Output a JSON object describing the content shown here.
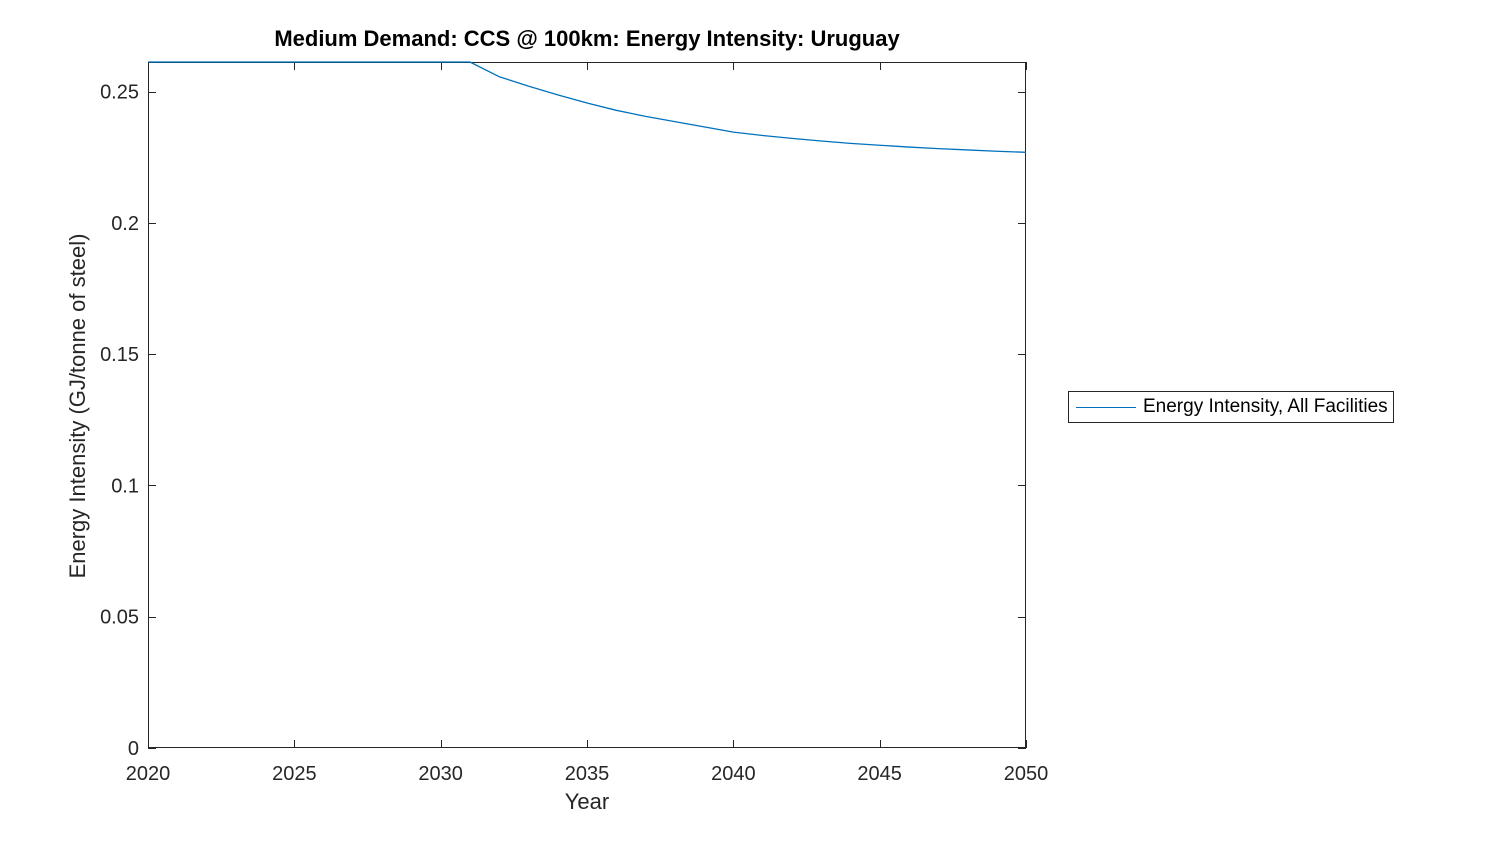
{
  "chart_data": {
    "type": "line",
    "title": "Medium Demand: CCS @ 100km: Energy Intensity: Uruguay",
    "xlabel": "Year",
    "ylabel": "Energy Intensity (GJ/tonne of steel)",
    "xlim": [
      2020,
      2050
    ],
    "ylim": [
      0,
      0.2613
    ],
    "xticks": [
      2020,
      2025,
      2030,
      2035,
      2040,
      2045,
      2050
    ],
    "xtick_labels": [
      "2020",
      "2025",
      "2030",
      "2035",
      "2040",
      "2045",
      "2050"
    ],
    "yticks": [
      0,
      0.05,
      0.1,
      0.15,
      0.2,
      0.25
    ],
    "ytick_labels": [
      "0",
      "0.05",
      "0.1",
      "0.15",
      "0.2",
      "0.25"
    ],
    "grid": false,
    "legend_position": "right-outside",
    "axis_color": "#262626",
    "background_color": "#ffffff",
    "series": [
      {
        "name": "Energy Intensity, All Facilities",
        "color": "#0072BD",
        "x": [
          2020,
          2021,
          2022,
          2023,
          2024,
          2025,
          2026,
          2027,
          2028,
          2029,
          2030,
          2031,
          2032,
          2033,
          2034,
          2035,
          2036,
          2037,
          2038,
          2039,
          2040,
          2041,
          2042,
          2043,
          2044,
          2045,
          2046,
          2047,
          2048,
          2049,
          2050
        ],
        "y": [
          0.2613,
          0.2613,
          0.2613,
          0.2613,
          0.2613,
          0.2613,
          0.2613,
          0.2613,
          0.2613,
          0.2613,
          0.2613,
          0.2613,
          0.2557,
          0.2521,
          0.2488,
          0.2457,
          0.2429,
          0.2406,
          0.2386,
          0.2366,
          0.2346,
          0.2333,
          0.2322,
          0.2312,
          0.2303,
          0.2296,
          0.2289,
          0.2283,
          0.2278,
          0.2273,
          0.2269
        ]
      }
    ]
  }
}
